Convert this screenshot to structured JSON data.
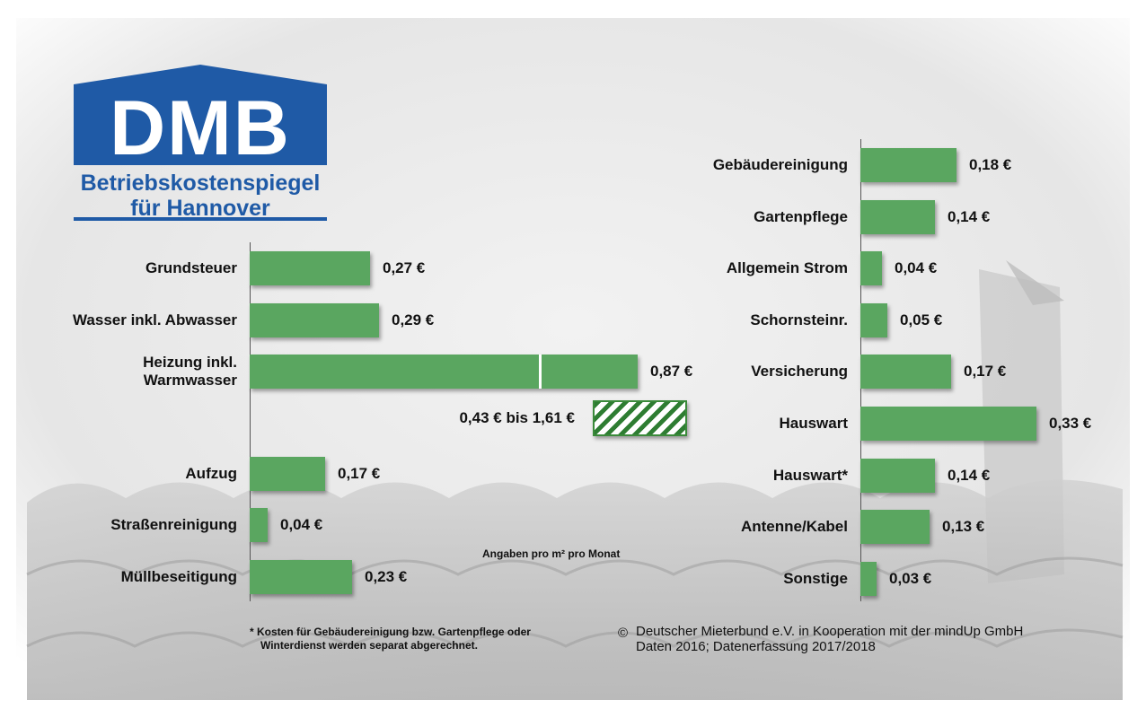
{
  "logo": {
    "brand": "DMB",
    "line1": "Betriebskostenspiegel",
    "line2": "für Hannover"
  },
  "chart_data": [
    {
      "type": "bar",
      "orientation": "horizontal",
      "categories": [
        "Grundsteuer",
        "Wasser inkl. Abwasser",
        "Heizung inkl. Warmwasser",
        "Aufzug",
        "Straßenreinigung",
        "Müllbeseitigung"
      ],
      "values": [
        0.27,
        0.29,
        0.87,
        0.17,
        0.04,
        0.23
      ],
      "value_labels": [
        "0,27 €",
        "0,29 €",
        "0,87 €",
        "0,17 €",
        "0,04 €",
        "0,23 €"
      ],
      "range": {
        "label": "0,43 € bis 1,61 €",
        "from": 0.43,
        "to": 1.61,
        "category": "Heizung inkl. Warmwasser"
      }
    },
    {
      "type": "bar",
      "orientation": "horizontal",
      "categories": [
        "Gebäudereinigung",
        "Gartenpflege",
        "Allgemein Strom",
        "Schornsteinr.",
        "Versicherung",
        "Hauswart",
        "Hauswart*",
        "Antenne/Kabel",
        "Sonstige"
      ],
      "values": [
        0.18,
        0.14,
        0.04,
        0.05,
        0.17,
        0.33,
        0.14,
        0.13,
        0.03
      ],
      "value_labels": [
        "0,18 €",
        "0,14 €",
        "0,04 €",
        "0,05 €",
        "0,17 €",
        "0,33 €",
        "0,14 €",
        "0,13 €",
        "0,03 €"
      ]
    }
  ],
  "unit_note": "Angaben pro m² pro Monat",
  "footnote": [
    "* Kosten für Gebäudereinigung bzw. Gartenpflege oder",
    "Winterdienst werden separat abgerechnet."
  ],
  "copyright": [
    "Deutscher Mieterbund e.V. in Kooperation mit der mindUp GmbH",
    "Daten 2016; Datenerfassung 2017/2018"
  ],
  "colors": {
    "bar": "#5aa660",
    "logo_blue": "#1f5aa6"
  }
}
